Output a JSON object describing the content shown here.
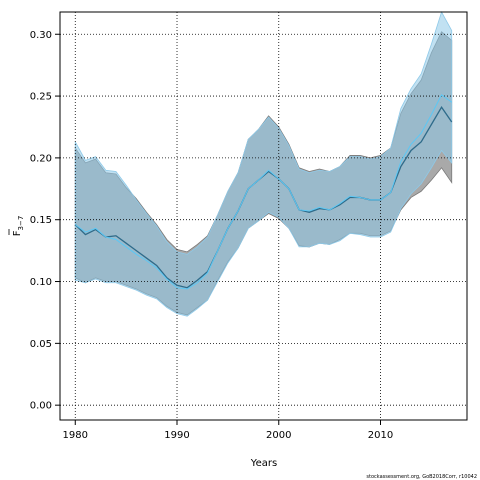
{
  "chart_data": {
    "type": "area",
    "xlabel": "Years",
    "ylabel_main": "F",
    "ylabel_sub": "3−7",
    "caption": "stockassessment.org, GoB2018Corr, r10042",
    "xlim": [
      1978.5,
      2018.5
    ],
    "ylim": [
      -0.012,
      0.318
    ],
    "x_ticks": [
      1980,
      1990,
      2000,
      2010
    ],
    "y_ticks": [
      0.0,
      0.05,
      0.1,
      0.15,
      0.2,
      0.25,
      0.3
    ],
    "y_tick_labels": [
      "0.00",
      "0.05",
      "0.10",
      "0.15",
      "0.20",
      "0.25",
      "0.30"
    ],
    "grid": true,
    "colors": {
      "series_a_band": "#9a9a9a",
      "series_a_line": "#2e6b8a",
      "series_b_band": "#8ec9e8",
      "series_b_line": "#5bc8f5"
    },
    "series": [
      {
        "x": [
          1980,
          1981,
          1982,
          1983,
          1984,
          1985,
          1986,
          1987,
          1988,
          1989,
          1990,
          1991,
          1992,
          1993,
          1994,
          1995,
          1996,
          1997,
          1998,
          1999,
          2000,
          2001,
          2002,
          2003,
          2004,
          2005,
          2006,
          2007,
          2008,
          2009,
          2010,
          2011,
          2012,
          2013,
          2014,
          2015,
          2016,
          2017
        ],
        "values": [
          0.146,
          0.138,
          0.142,
          0.136,
          0.137,
          0.131,
          0.125,
          0.119,
          0.113,
          0.103,
          0.097,
          0.095,
          0.101,
          0.108,
          0.125,
          0.143,
          0.157,
          0.175,
          0.182,
          0.189,
          0.183,
          0.175,
          0.158,
          0.156,
          0.159,
          0.158,
          0.162,
          0.168,
          0.168,
          0.166,
          0.166,
          0.172,
          0.193,
          0.206,
          0.213,
          0.227,
          0.241,
          0.229
        ],
        "upper": [
          0.208,
          0.196,
          0.199,
          0.188,
          0.187,
          0.176,
          0.167,
          0.156,
          0.146,
          0.134,
          0.126,
          0.124,
          0.13,
          0.137,
          0.154,
          0.173,
          0.188,
          0.215,
          0.223,
          0.234,
          0.225,
          0.211,
          0.192,
          0.189,
          0.191,
          0.189,
          0.193,
          0.202,
          0.202,
          0.2,
          0.202,
          0.208,
          0.236,
          0.252,
          0.263,
          0.285,
          0.302,
          0.295
        ],
        "lower": [
          0.103,
          0.099,
          0.103,
          0.1,
          0.1,
          0.097,
          0.094,
          0.09,
          0.087,
          0.08,
          0.075,
          0.073,
          0.079,
          0.085,
          0.101,
          0.116,
          0.127,
          0.143,
          0.149,
          0.155,
          0.151,
          0.143,
          0.129,
          0.128,
          0.131,
          0.13,
          0.134,
          0.139,
          0.139,
          0.137,
          0.137,
          0.141,
          0.158,
          0.168,
          0.173,
          0.182,
          0.192,
          0.18
        ]
      },
      {
        "x": [
          1980,
          1981,
          1982,
          1983,
          1984,
          1985,
          1986,
          1987,
          1988,
          1989,
          1990,
          1991,
          1992,
          1993,
          1994,
          1995,
          1996,
          1997,
          1998,
          1999,
          2000,
          2001,
          2002,
          2003,
          2004,
          2005,
          2006,
          2007,
          2008,
          2009,
          2010,
          2011,
          2012,
          2013,
          2014,
          2015,
          2016,
          2017
        ],
        "values": [
          0.146,
          0.14,
          0.143,
          0.136,
          0.134,
          0.128,
          0.122,
          0.117,
          0.111,
          0.102,
          0.095,
          0.094,
          0.099,
          0.107,
          0.125,
          0.143,
          0.157,
          0.175,
          0.182,
          0.19,
          0.183,
          0.175,
          0.158,
          0.157,
          0.16,
          0.158,
          0.163,
          0.169,
          0.168,
          0.166,
          0.166,
          0.172,
          0.197,
          0.211,
          0.22,
          0.235,
          0.251,
          0.245
        ],
        "upper": [
          0.213,
          0.198,
          0.201,
          0.19,
          0.189,
          0.178,
          0.166,
          0.155,
          0.145,
          0.132,
          0.124,
          0.122,
          0.128,
          0.136,
          0.154,
          0.173,
          0.188,
          0.215,
          0.223,
          0.233,
          0.224,
          0.21,
          0.191,
          0.188,
          0.19,
          0.189,
          0.193,
          0.201,
          0.201,
          0.199,
          0.201,
          0.208,
          0.24,
          0.256,
          0.268,
          0.292,
          0.318,
          0.303
        ],
        "lower": [
          0.101,
          0.099,
          0.102,
          0.099,
          0.099,
          0.096,
          0.093,
          0.089,
          0.086,
          0.079,
          0.074,
          0.072,
          0.078,
          0.085,
          0.1,
          0.115,
          0.127,
          0.143,
          0.149,
          0.156,
          0.152,
          0.143,
          0.128,
          0.128,
          0.131,
          0.13,
          0.133,
          0.139,
          0.138,
          0.136,
          0.136,
          0.14,
          0.159,
          0.171,
          0.179,
          0.192,
          0.206,
          0.196
        ]
      }
    ]
  }
}
